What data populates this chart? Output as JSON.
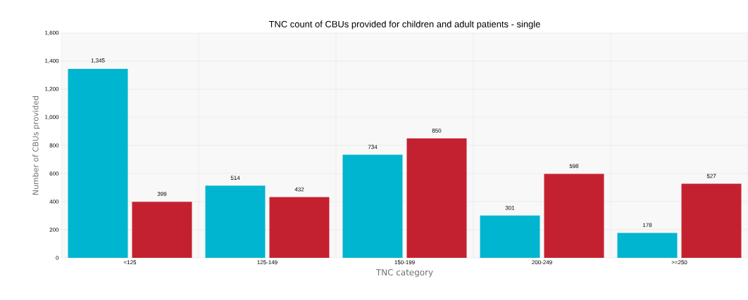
{
  "chart_data": {
    "type": "bar",
    "title": "TNC count of CBUs provided for children and adult patients - single",
    "xlabel": "TNC category",
    "ylabel": "Number of CBUs provided",
    "categories": [
      "<125",
      "125-149",
      "150-199",
      "200-249",
      ">=250"
    ],
    "series": [
      {
        "color": "#00b5cf",
        "values": [
          1345,
          514,
          734,
          301,
          178
        ],
        "value_labels": [
          "1,345",
          "514",
          "734",
          "301",
          "178"
        ]
      },
      {
        "color": "#c42130",
        "values": [
          399,
          432,
          850,
          598,
          527
        ],
        "value_labels": [
          "399",
          "432",
          "850",
          "598",
          "527"
        ]
      }
    ],
    "ylim": [
      0,
      1600
    ],
    "yticks": [
      0,
      200,
      400,
      600,
      800,
      {
        "value": 1000,
        "label": "1,000"
      },
      {
        "value": 1200,
        "label": "1,200"
      },
      {
        "value": 1400,
        "label": "1,400"
      },
      {
        "value": 1600,
        "label": "1,600"
      }
    ],
    "grid": true
  }
}
